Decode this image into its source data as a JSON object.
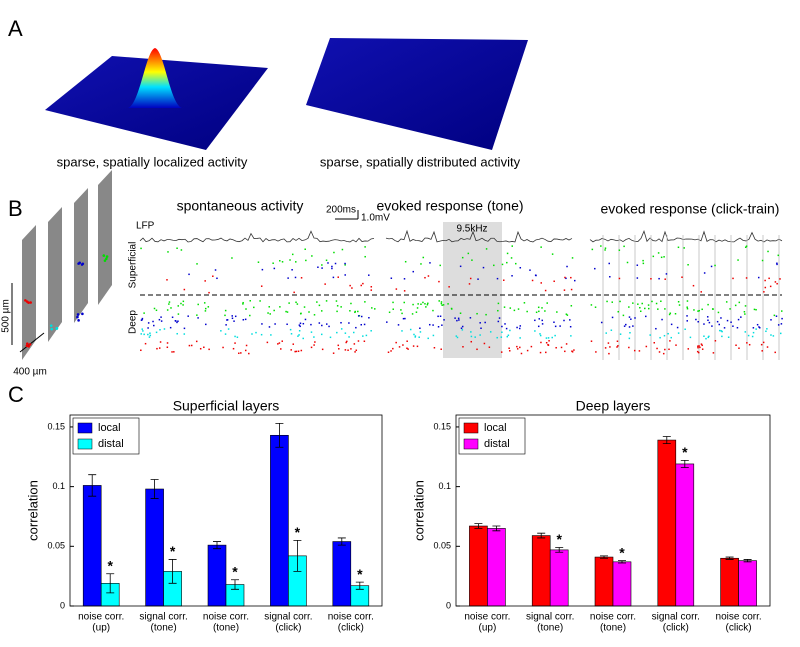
{
  "panel_labels": [
    "A",
    "B",
    "C"
  ],
  "panel_a": {
    "captions": [
      "sparse, spatially localized activity",
      "sparse, spatially distributed activity"
    ]
  },
  "panel_b": {
    "titles": [
      "spontaneous activity",
      "evoked response (tone)",
      "evoked response (click-train)"
    ],
    "scale_time": "200ms",
    "scale_voltage": "1.0mV",
    "lfp": "LFP",
    "frequency": "9.5kHz",
    "layer_labels": [
      "Superficial",
      "Deep"
    ],
    "depth": "500 µm",
    "width": "400 µm"
  },
  "chart_data": [
    {
      "type": "bar",
      "title": "Superficial layers",
      "ylabel": "correlation",
      "categories": [
        [
          "noise corr.",
          "(up)"
        ],
        [
          "signal corr.",
          "(tone)"
        ],
        [
          "noise corr.",
          "(tone)"
        ],
        [
          "signal corr.",
          "(click)"
        ],
        [
          "noise corr.",
          "(click)"
        ]
      ],
      "series": [
        {
          "name": "local",
          "color": "#0000ff",
          "values": [
            0.101,
            0.098,
            0.051,
            0.143,
            0.054
          ],
          "errors": [
            0.009,
            0.008,
            0.003,
            0.01,
            0.003
          ]
        },
        {
          "name": "distal",
          "color": "#00ffff",
          "values": [
            0.019,
            0.029,
            0.018,
            0.042,
            0.017
          ],
          "errors": [
            0.008,
            0.01,
            0.004,
            0.013,
            0.003
          ],
          "markers": [
            "*",
            "*",
            "*",
            "*",
            "*"
          ]
        }
      ],
      "ylim": [
        0,
        0.16
      ],
      "yticks": [
        0,
        0.05,
        0.1,
        0.15
      ],
      "legend": "upper left"
    },
    {
      "type": "bar",
      "title": "Deep layers",
      "ylabel": "correlation",
      "categories": [
        [
          "noise corr.",
          "(up)"
        ],
        [
          "signal corr.",
          "(tone)"
        ],
        [
          "noise corr.",
          "(tone)"
        ],
        [
          "signal corr.",
          "(click)"
        ],
        [
          "noise corr.",
          "(click)"
        ]
      ],
      "series": [
        {
          "name": "local",
          "color": "#ff0000",
          "values": [
            0.067,
            0.059,
            0.041,
            0.139,
            0.04
          ],
          "errors": [
            0.002,
            0.002,
            0.001,
            0.003,
            0.001
          ]
        },
        {
          "name": "distal",
          "color": "#ff00ff",
          "values": [
            0.065,
            0.047,
            0.037,
            0.119,
            0.038
          ],
          "errors": [
            0.002,
            0.002,
            0.001,
            0.003,
            0.001
          ],
          "markers": [
            null,
            "*",
            "*",
            "*",
            null
          ]
        }
      ],
      "ylim": [
        0,
        0.16
      ],
      "yticks": [
        0,
        0.05,
        0.1,
        0.15
      ],
      "legend": "upper left"
    }
  ]
}
